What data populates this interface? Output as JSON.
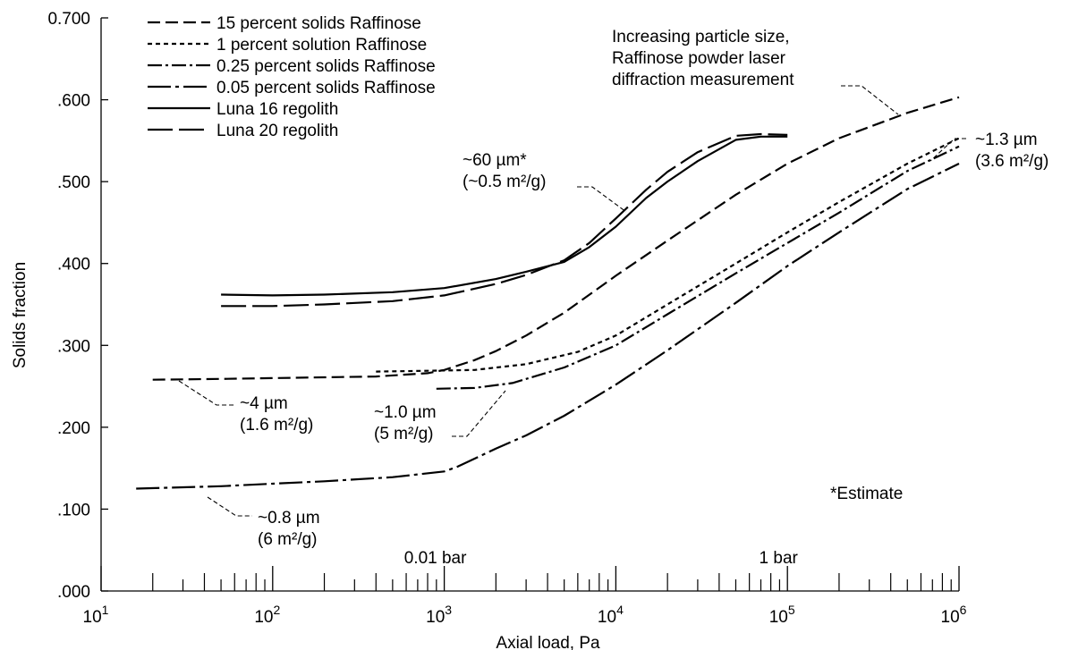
{
  "chart_data": {
    "type": "line",
    "xlabel": "Axial load, Pa",
    "ylabel": "Solids fraction",
    "xscale": "log",
    "xlim": [
      10,
      1000000
    ],
    "ylim": [
      0,
      0.7
    ],
    "grid": false,
    "legend_position": "top-left",
    "yticks": [
      ".000",
      ".100",
      ".200",
      ".300",
      ".400",
      ".500",
      ".600",
      "0.700"
    ],
    "xtick_bases": [
      "10",
      "10",
      "10",
      "10",
      "10",
      "10"
    ],
    "xtick_exps": [
      "1",
      "2",
      "3",
      "4",
      "5",
      "6"
    ],
    "pressure_marks": [
      "0.01 bar",
      "1 bar"
    ],
    "series": [
      {
        "name": "15 percent solids Raffinose",
        "dash": "dash",
        "x": [
          20,
          50,
          100,
          200,
          400,
          800,
          1000,
          1500,
          2000,
          3000,
          5000,
          10000,
          20000,
          50000,
          100000,
          200000,
          500000,
          1000000
        ],
        "y": [
          0.258,
          0.259,
          0.26,
          0.261,
          0.262,
          0.266,
          0.27,
          0.282,
          0.293,
          0.312,
          0.34,
          0.385,
          0.428,
          0.484,
          0.522,
          0.553,
          0.584,
          0.603
        ]
      },
      {
        "name": "1 percent solution Raffinose",
        "dash": "dot",
        "x": [
          400,
          800,
          1500,
          3000,
          6000,
          10000,
          20000,
          50000,
          100000,
          200000,
          500000,
          1000000
        ],
        "y": [
          0.268,
          0.269,
          0.27,
          0.277,
          0.292,
          0.312,
          0.35,
          0.4,
          0.438,
          0.475,
          0.522,
          0.553
        ]
      },
      {
        "name": "0.25 percent solids Raffinose",
        "dash": "dashdot",
        "x": [
          900,
          1500,
          2500,
          5000,
          10000,
          20000,
          50000,
          100000,
          200000,
          500000,
          1000000
        ],
        "y": [
          0.247,
          0.248,
          0.254,
          0.273,
          0.3,
          0.338,
          0.388,
          0.425,
          0.462,
          0.513,
          0.543
        ]
      },
      {
        "name": "0.05 percent solids Raffinose",
        "dash": "longdashdot",
        "x": [
          16,
          50,
          100,
          200,
          500,
          1000,
          1200,
          2000,
          3000,
          5000,
          10000,
          20000,
          50000,
          100000,
          200000,
          500000,
          1000000
        ],
        "y": [
          0.125,
          0.128,
          0.131,
          0.134,
          0.139,
          0.146,
          0.152,
          0.174,
          0.19,
          0.214,
          0.252,
          0.294,
          0.352,
          0.397,
          0.438,
          0.491,
          0.522
        ]
      },
      {
        "name": "Luna 16 regolith",
        "dash": "solid",
        "x": [
          50,
          100,
          200,
          500,
          1000,
          2000,
          3000,
          5000,
          7000,
          10000,
          15000,
          20000,
          30000,
          50000,
          70000,
          100000
        ],
        "y": [
          0.362,
          0.361,
          0.362,
          0.365,
          0.37,
          0.381,
          0.39,
          0.402,
          0.42,
          0.445,
          0.48,
          0.5,
          0.525,
          0.551,
          0.555,
          0.555
        ]
      },
      {
        "name": "Luna 20 regolith",
        "dash": "longdash",
        "x": [
          50,
          100,
          200,
          500,
          1000,
          2000,
          3000,
          5000,
          7000,
          10000,
          15000,
          20000,
          30000,
          50000,
          70000,
          100000
        ],
        "y": [
          0.348,
          0.348,
          0.35,
          0.354,
          0.361,
          0.375,
          0.386,
          0.404,
          0.425,
          0.455,
          0.49,
          0.512,
          0.536,
          0.556,
          0.558,
          0.557
        ]
      }
    ],
    "annotations": [
      {
        "id": "ann-increasing",
        "lines": [
          "Increasing particle size,",
          "Raffinose powder laser",
          "diffraction measurement"
        ]
      },
      {
        "id": "ann-60um",
        "lines": [
          "~60 µm*",
          "(~0.5 m²/g)"
        ]
      },
      {
        "id": "ann-1-3um",
        "lines": [
          "~1.3 µm",
          "(3.6 m²/g)"
        ]
      },
      {
        "id": "ann-4um",
        "lines": [
          "~4 µm",
          "(1.6 m²/g)"
        ]
      },
      {
        "id": "ann-1-0um",
        "lines": [
          "~1.0 µm",
          "(5 m²/g)"
        ]
      },
      {
        "id": "ann-0-8um",
        "lines": [
          "~0.8 µm",
          "(6 m²/g)"
        ]
      },
      {
        "id": "ann-estimate",
        "lines": [
          "*Estimate"
        ]
      }
    ]
  }
}
